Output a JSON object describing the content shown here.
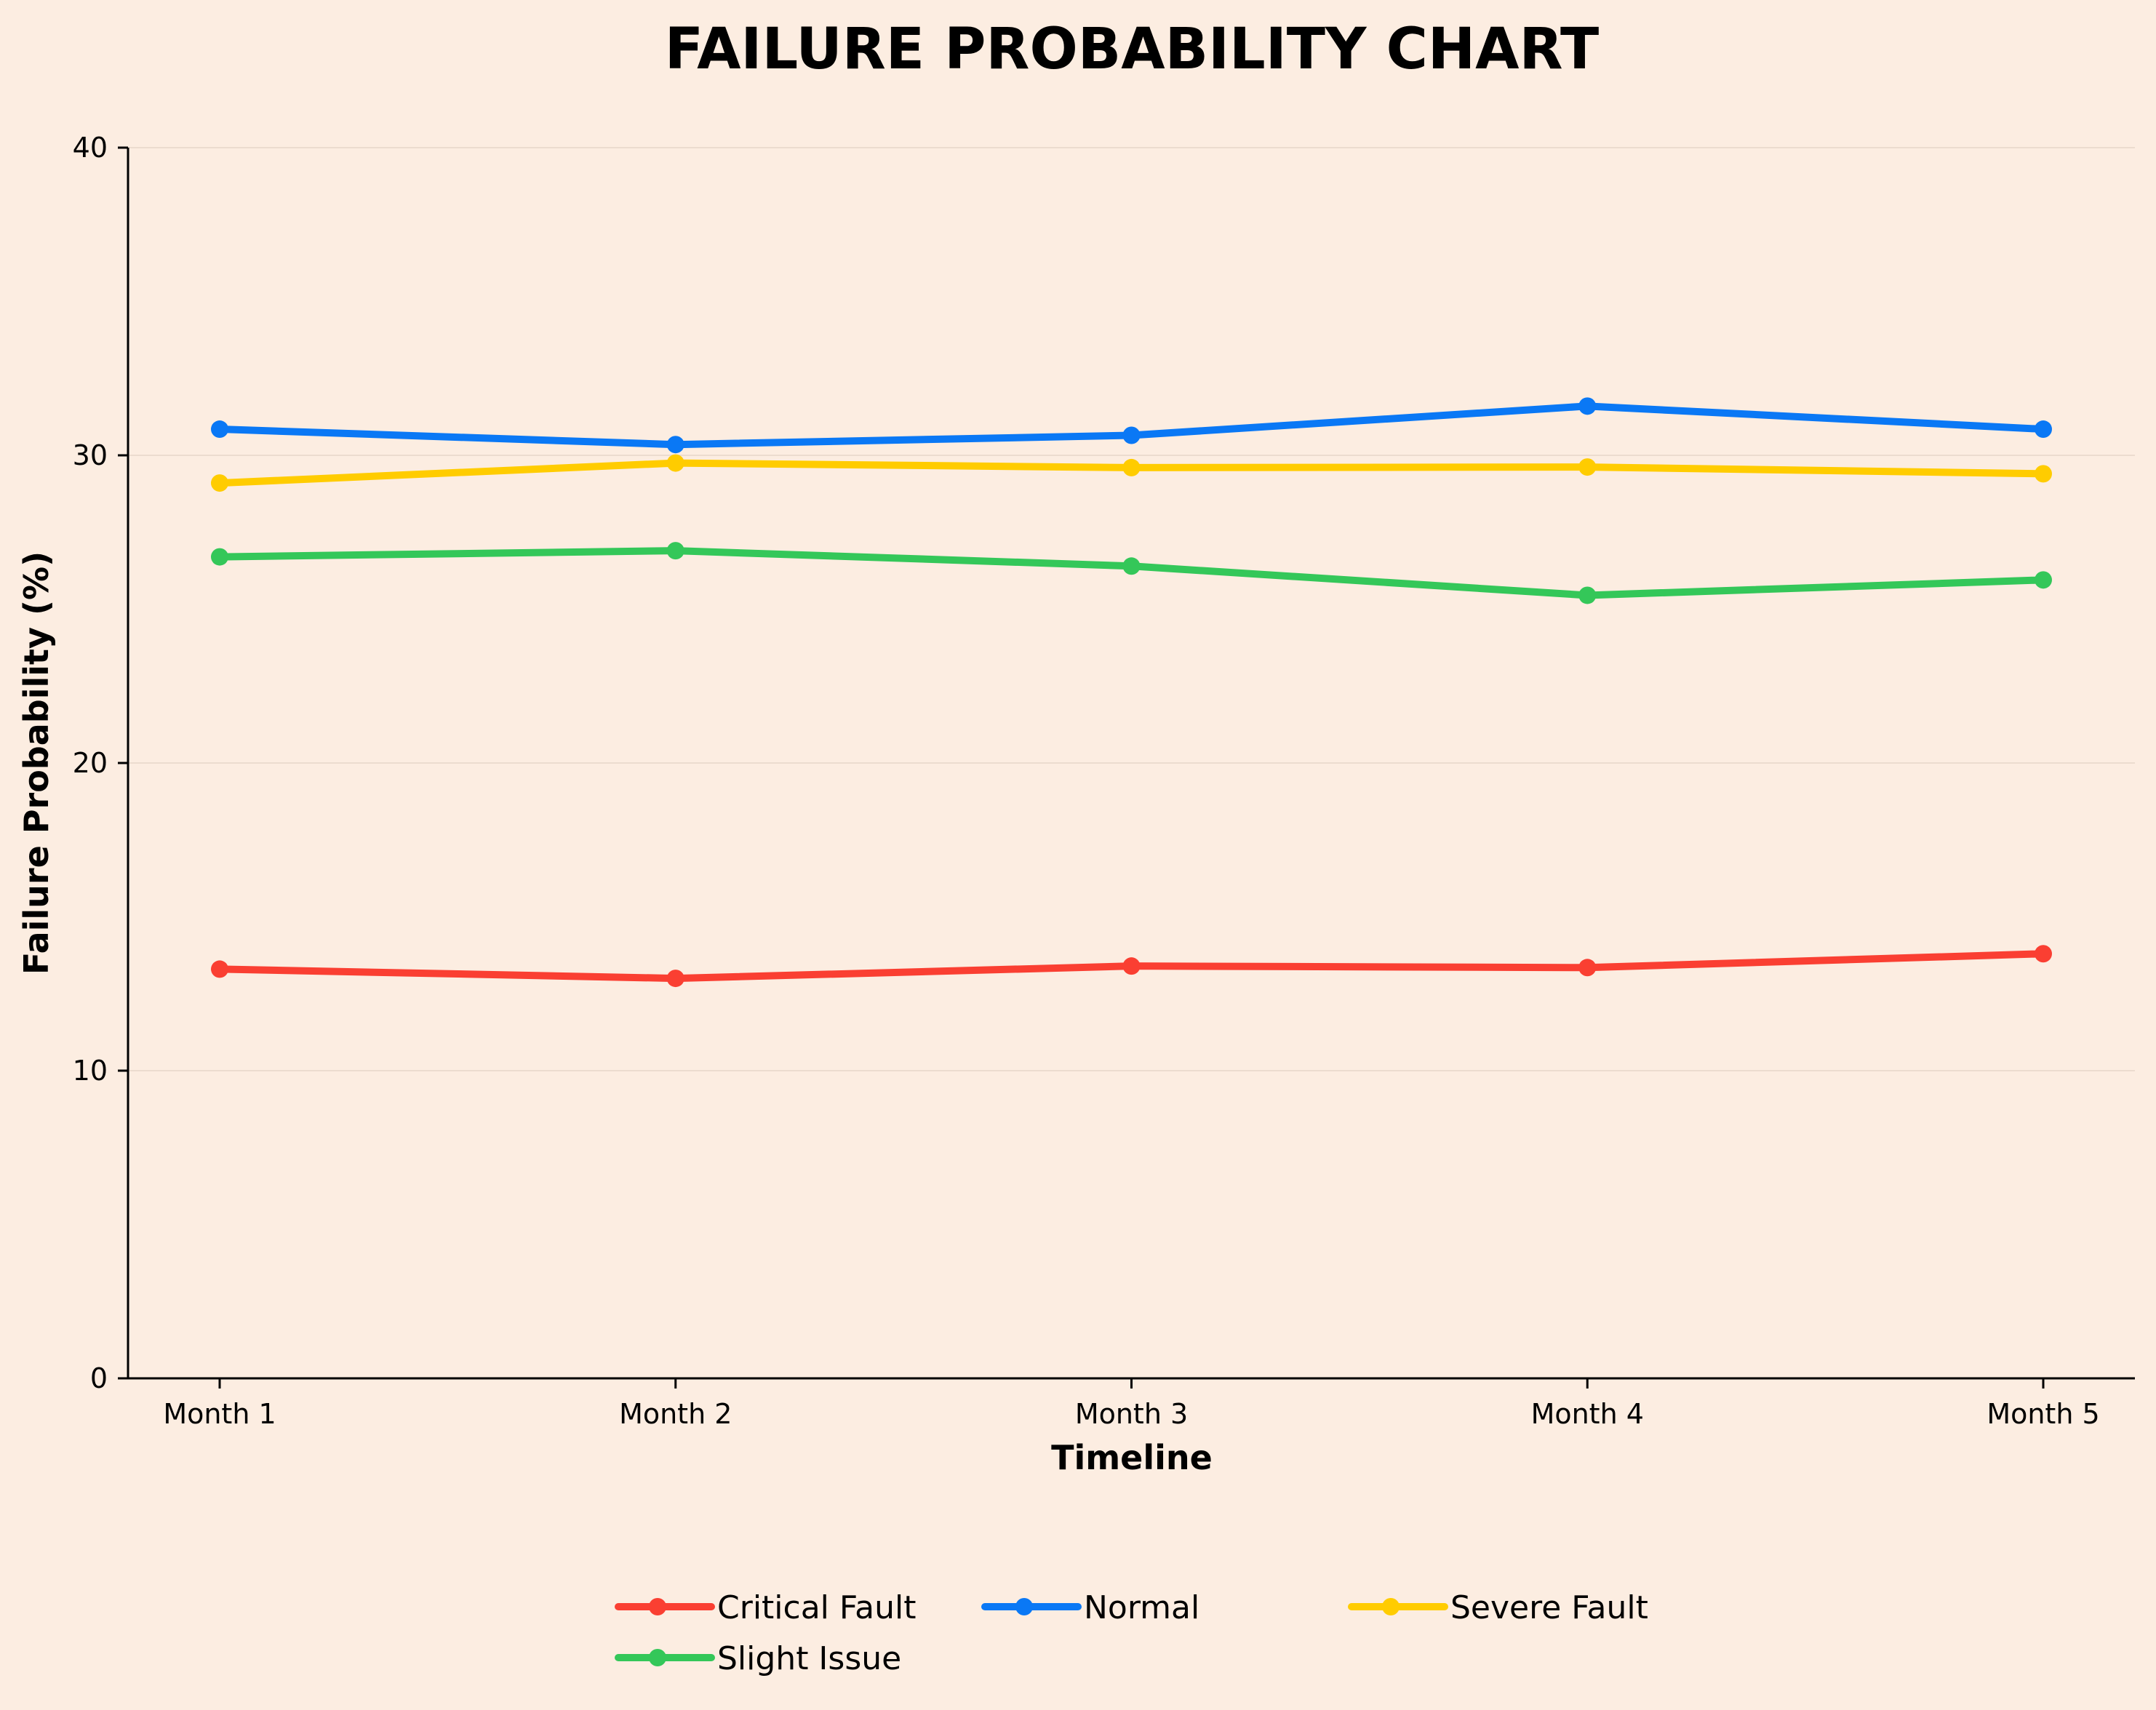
{
  "chart_data": {
    "type": "line",
    "title": "FAILURE PROBABILITY CHART",
    "xlabel": "Timeline",
    "ylabel": "Failure Probability (%)",
    "categories": [
      "Month 1",
      "Month 2",
      "Month 3",
      "Month 4",
      "Month 5"
    ],
    "ylim": [
      0,
      40
    ],
    "yticks": [
      0,
      10,
      20,
      30,
      40
    ],
    "grid": true,
    "legend_position": "bottom-center",
    "series": [
      {
        "name": "Critical Fault",
        "color": "#fa3f32",
        "values": [
          13.3,
          13.0,
          13.4,
          13.35,
          13.8
        ]
      },
      {
        "name": "Normal",
        "color": "#0a78f5",
        "values": [
          30.85,
          30.35,
          30.65,
          31.6,
          30.85
        ]
      },
      {
        "name": "Severe Fault",
        "color": "#ffcc00",
        "values": [
          29.1,
          29.75,
          29.6,
          29.62,
          29.4
        ]
      },
      {
        "name": "Slight Issue",
        "color": "#34c759",
        "values": [
          26.7,
          26.9,
          26.4,
          25.45,
          25.95
        ]
      }
    ]
  }
}
